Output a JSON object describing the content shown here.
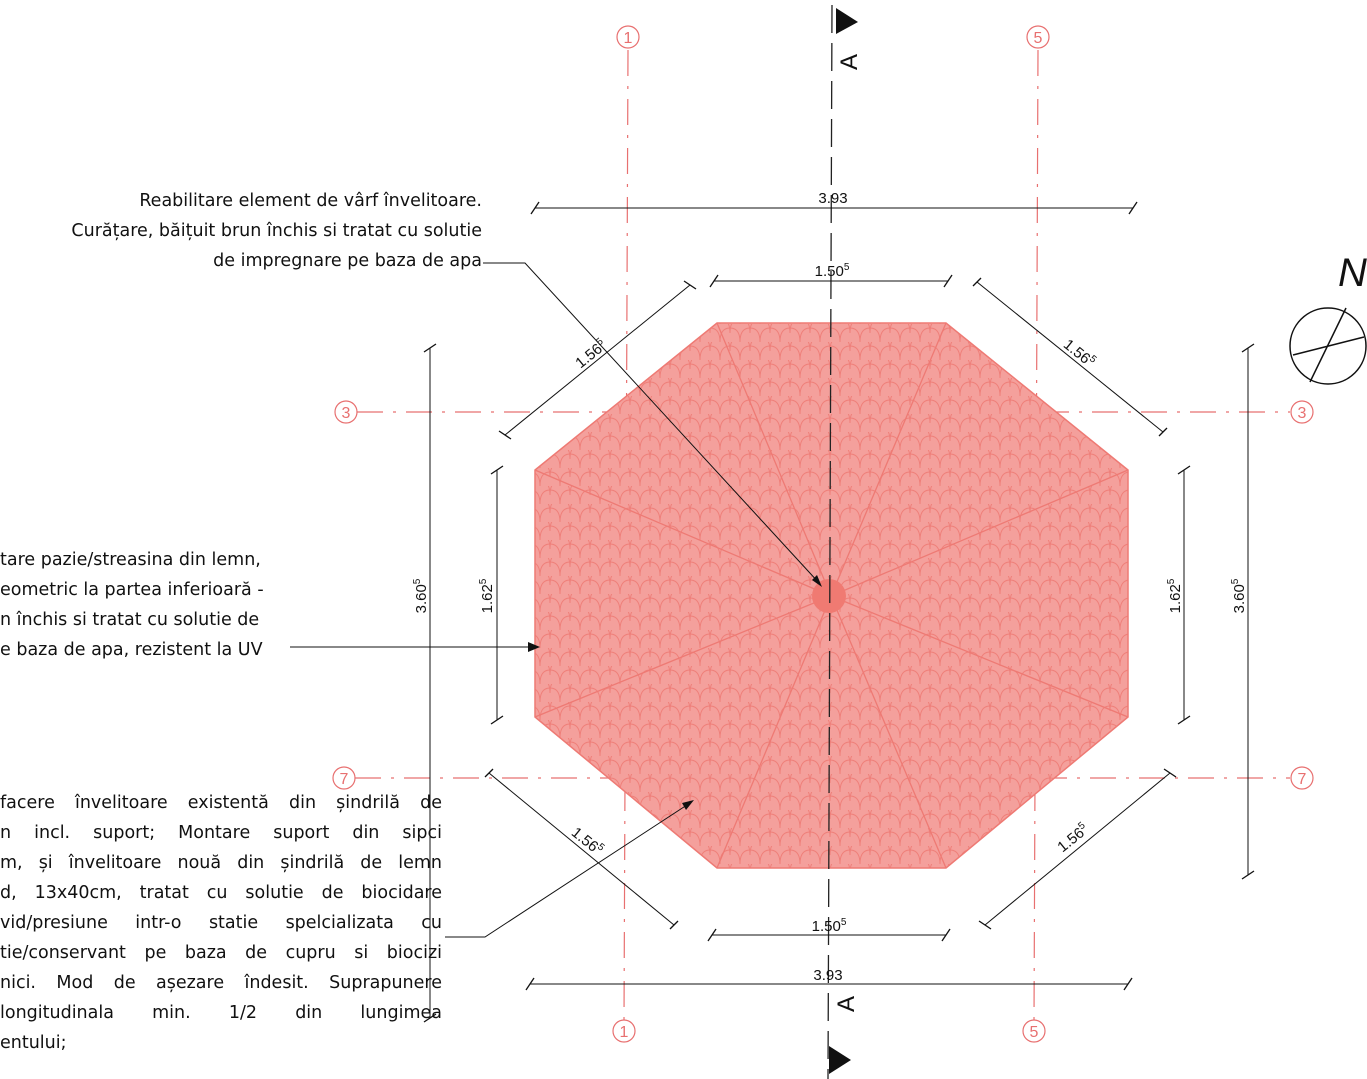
{
  "notes": {
    "top": [
      "Reabilitare element de vârf învelitoare.",
      "Curățare, băițuit brun închis si tratat cu solutie",
      "de impregnare pe baza de apa"
    ],
    "middle": [
      "tare pazie/streasina din lemn,",
      "eometric la partea inferioară -",
      "n închis si tratat cu solutie de",
      "e baza de apa, rezistent la UV"
    ],
    "bottom": [
      "facere învelitoare existentă din șindrilă de",
      "n incl. suport; Montare suport din sipci",
      "m, și învelitoare nouă din șindrilă de lemn",
      "d, 13x40cm, tratat cu solutie de biocidare",
      "vid/presiune intr-o statie spelcializata cu",
      "tie/conservant pe baza de cupru si biocizi",
      "nici. Mod de așezare îndesit. Suprapunere",
      "longitudinala min. 1/2 din lungimea",
      "entului;"
    ]
  },
  "dimensions": {
    "overall_width_top": "3.93",
    "overall_width_bottom": "3.93",
    "top_edge": {
      "main": "1.50",
      "sup": "5"
    },
    "bottom_edge": {
      "main": "1.50",
      "sup": "5"
    },
    "diag_top_left": {
      "main": "1.56",
      "sup": "5"
    },
    "diag_top_right": {
      "main": "1.56",
      "sup": "5"
    },
    "diag_bottom_left": {
      "main": "1.56",
      "sup": "5"
    },
    "diag_bottom_right": {
      "main": "1.56",
      "sup": "5"
    },
    "side_left": {
      "main": "1.62",
      "sup": "5"
    },
    "side_right": {
      "main": "1.62",
      "sup": "5"
    },
    "overall_height_left": {
      "main": "3.60",
      "sup": "5"
    },
    "overall_height_right": {
      "main": "3.60",
      "sup": "5"
    }
  },
  "grid_axes": {
    "axis_1": "1",
    "axis_5": "5",
    "axis_3": "3",
    "axis_7": "7"
  },
  "section": {
    "label": "A"
  },
  "north": {
    "label": "N"
  },
  "colors": {
    "roof_fill": "#f4a09c",
    "roof_pattern": "#ee7a74",
    "grid_axis": "#e87070",
    "ink": "#111111"
  }
}
